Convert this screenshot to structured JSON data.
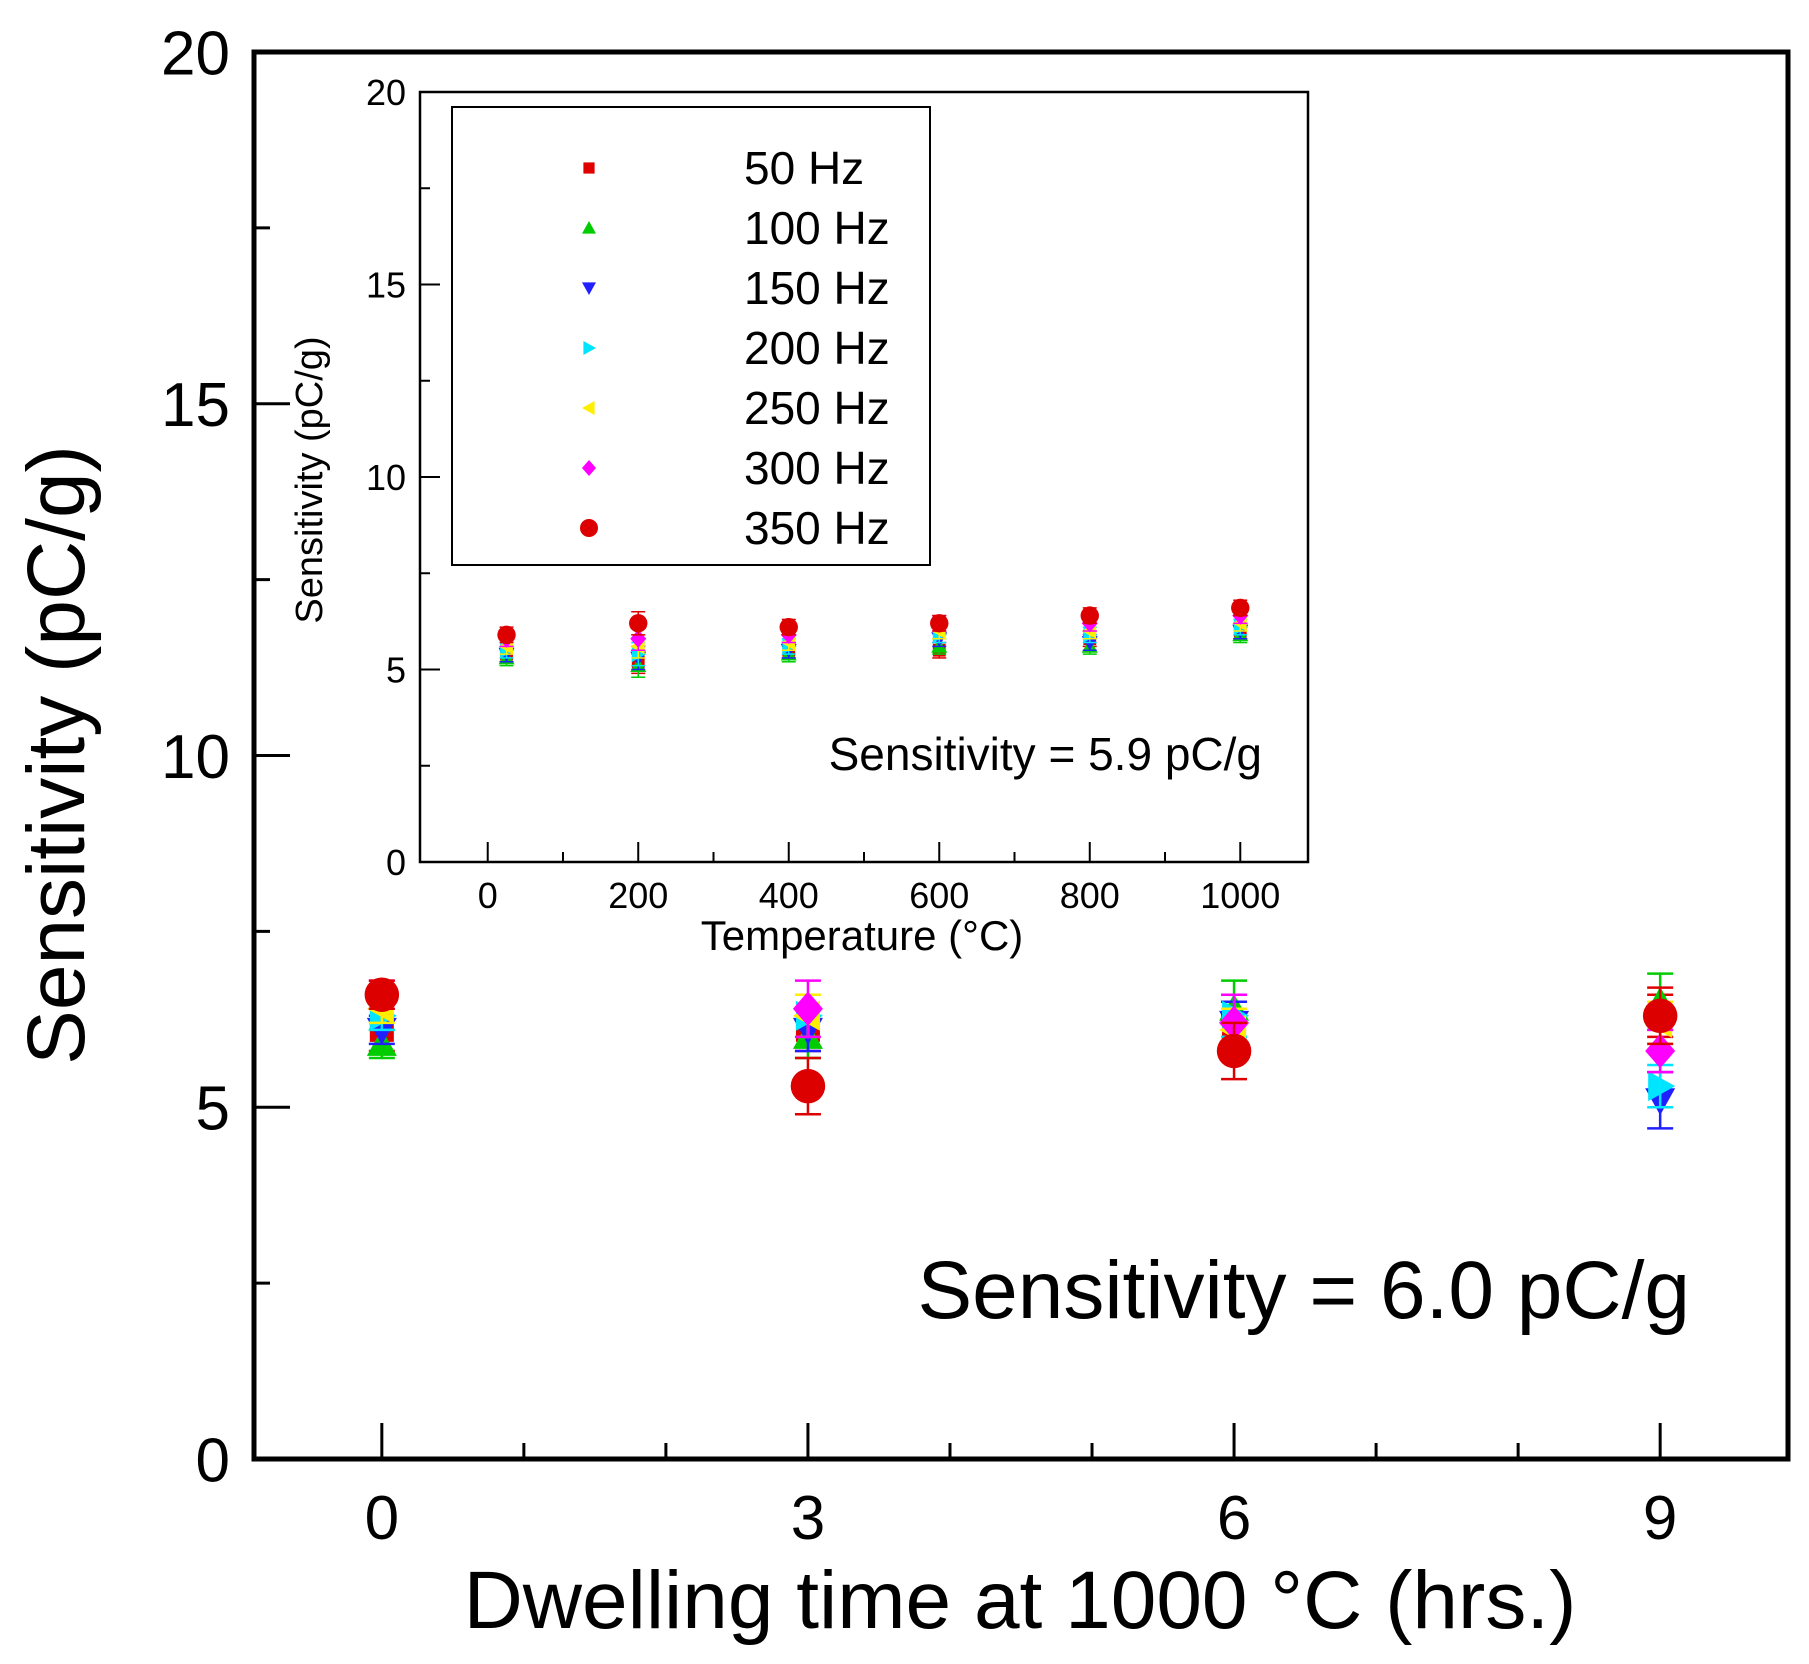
{
  "chart_data": [
    {
      "name": "main",
      "type": "scatter",
      "xlabel": "Dwelling time at 1000 °C (hrs.)",
      "ylabel": "Sensitivity (pC/g)",
      "xlim": [
        -0.9,
        9.9
      ],
      "ylim": [
        0,
        20
      ],
      "xticks": [
        0,
        3,
        6,
        9
      ],
      "xtick_labels": [
        "0",
        "3",
        "6",
        "9"
      ],
      "yticks": [
        0,
        5,
        10,
        15,
        20
      ],
      "ytick_labels": [
        "0",
        "5",
        "10",
        "15",
        "20"
      ],
      "annotation": "Sensitivity = 6.0 pC/g",
      "x": [
        0,
        3,
        6,
        9
      ],
      "series": [
        {
          "name": "50 Hz",
          "color": "#e00000",
          "marker": "square",
          "values": [
            6.1,
            6.1,
            6.0,
            6.3
          ],
          "error": [
            0.3,
            0.3,
            0.3,
            0.3
          ]
        },
        {
          "name": "100 Hz",
          "color": "#00cc00",
          "marker": "triangle-up",
          "values": [
            5.9,
            6.0,
            6.4,
            6.5
          ],
          "error": [
            0.2,
            0.3,
            0.4,
            0.4
          ]
        },
        {
          "name": "150 Hz",
          "color": "#2020ff",
          "marker": "triangle-down",
          "values": [
            6.1,
            6.1,
            6.2,
            5.1
          ],
          "error": [
            0.2,
            0.3,
            0.3,
            0.4
          ]
        },
        {
          "name": "200 Hz",
          "color": "#00e5ff",
          "marker": "triangle-right",
          "values": [
            6.3,
            6.3,
            6.3,
            5.3
          ],
          "error": [
            0.2,
            0.3,
            0.3,
            0.3
          ]
        },
        {
          "name": "250 Hz",
          "color": "#ffee00",
          "marker": "triangle-left",
          "values": [
            6.4,
            6.3,
            6.1,
            6.2
          ],
          "error": [
            0.2,
            0.3,
            0.3,
            0.3
          ]
        },
        {
          "name": "300 Hz",
          "color": "#ff00ff",
          "marker": "diamond",
          "values": [
            6.6,
            6.4,
            6.2,
            5.8
          ],
          "error": [
            0.2,
            0.4,
            0.4,
            0.3
          ]
        },
        {
          "name": "350 Hz",
          "color": "#dd0000",
          "marker": "circle",
          "values": [
            6.6,
            5.3,
            5.8,
            6.3
          ],
          "error": [
            0.2,
            0.4,
            0.4,
            0.4
          ]
        }
      ]
    },
    {
      "name": "inset",
      "type": "scatter",
      "xlabel": "Temperature (°C)",
      "ylabel": "Sensitivity (pC/g)",
      "xlim": [
        -90,
        1090
      ],
      "ylim": [
        0,
        20
      ],
      "xticks": [
        0,
        200,
        400,
        600,
        800,
        1000
      ],
      "xtick_labels": [
        "0",
        "200",
        "400",
        "600",
        "800",
        "1000"
      ],
      "yticks": [
        0,
        5,
        10,
        15,
        20
      ],
      "ytick_labels": [
        "0",
        "5",
        "10",
        "15",
        "20"
      ],
      "annotation": "Sensitivity = 5.9 pC/g",
      "legend_position": "top-left",
      "x": [
        25,
        200,
        400,
        600,
        800,
        1000
      ],
      "series": [
        {
          "name": "50 Hz",
          "color": "#e00000",
          "marker": "square",
          "values": [
            5.4,
            5.2,
            5.5,
            5.5,
            5.8,
            6.0
          ],
          "error": [
            0.2,
            0.3,
            0.2,
            0.2,
            0.2,
            0.2
          ]
        },
        {
          "name": "100 Hz",
          "color": "#00cc00",
          "marker": "triangle-up",
          "values": [
            5.3,
            5.1,
            5.4,
            5.6,
            5.6,
            5.9
          ],
          "error": [
            0.2,
            0.3,
            0.2,
            0.2,
            0.2,
            0.2
          ]
        },
        {
          "name": "150 Hz",
          "color": "#2020ff",
          "marker": "triangle-down",
          "values": [
            5.4,
            5.3,
            5.5,
            5.8,
            5.7,
            6.0
          ],
          "error": [
            0.2,
            0.3,
            0.2,
            0.2,
            0.2,
            0.2
          ]
        },
        {
          "name": "200 Hz",
          "color": "#00e5ff",
          "marker": "triangle-right",
          "values": [
            5.5,
            5.4,
            5.6,
            5.9,
            5.9,
            6.1
          ],
          "error": [
            0.2,
            0.3,
            0.2,
            0.2,
            0.2,
            0.2
          ]
        },
        {
          "name": "250 Hz",
          "color": "#ffee00",
          "marker": "triangle-left",
          "values": [
            5.6,
            5.6,
            5.7,
            6.0,
            6.0,
            6.2
          ],
          "error": [
            0.2,
            0.3,
            0.2,
            0.2,
            0.2,
            0.2
          ]
        },
        {
          "name": "300 Hz",
          "color": "#ff00ff",
          "marker": "diamond",
          "values": [
            5.8,
            5.8,
            5.9,
            6.2,
            6.2,
            6.4
          ],
          "error": [
            0.2,
            0.3,
            0.2,
            0.2,
            0.2,
            0.2
          ]
        },
        {
          "name": "350 Hz",
          "color": "#dd0000",
          "marker": "circle",
          "values": [
            5.9,
            6.2,
            6.1,
            6.2,
            6.4,
            6.6
          ],
          "error": [
            0.2,
            0.3,
            0.2,
            0.2,
            0.2,
            0.2
          ]
        }
      ]
    }
  ]
}
